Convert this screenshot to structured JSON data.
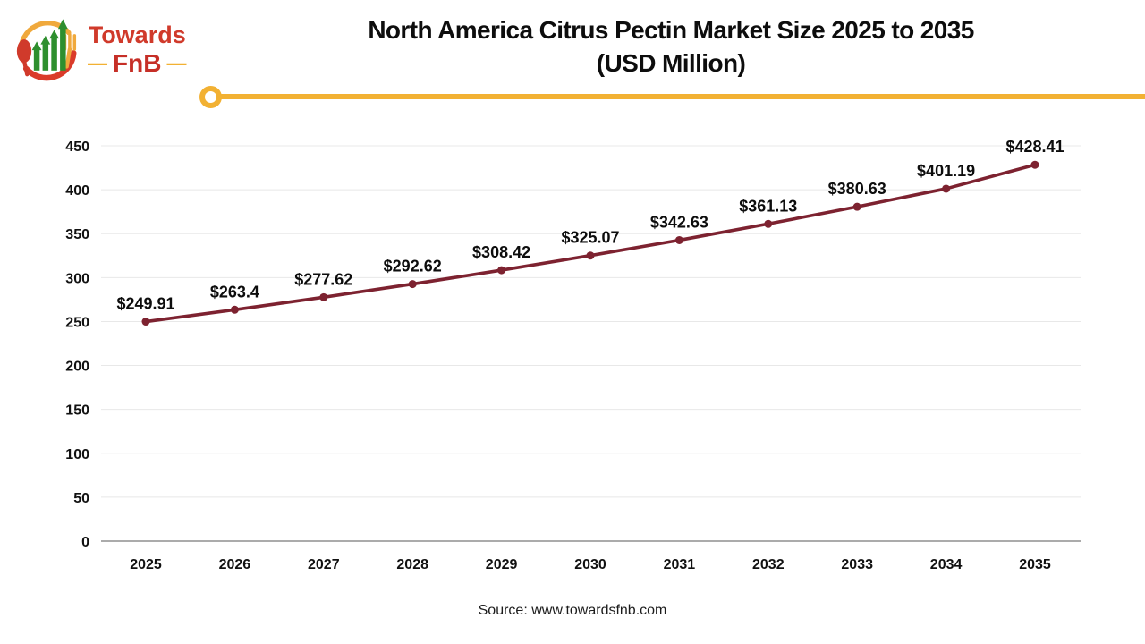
{
  "logo": {
    "brand_top": "Towards",
    "brand_bottom": "FnB",
    "dash": "—"
  },
  "header": {
    "title_line1": "North America Citrus Pectin Market Size 2025 to 2035",
    "title_line2": "(USD Million)"
  },
  "footer": {
    "source": "Source: www.towardsfnb.com"
  },
  "colors": {
    "series_line": "#7d2230",
    "marker": "#7d2230",
    "accent_gold": "#f2b133",
    "gridline": "#e8e8e8",
    "axis_line": "#ababab",
    "tick_text": "#111111",
    "data_label_text": "#0d0d0d"
  },
  "chart_data": {
    "type": "line",
    "title": "North America Citrus Pectin Market Size 2025 to 2035 (USD Million)",
    "categories": [
      "2025",
      "2026",
      "2027",
      "2028",
      "2029",
      "2030",
      "2031",
      "2032",
      "2033",
      "2034",
      "2035"
    ],
    "series": [
      {
        "name": "North America Citrus Pectin Market Size (USD Million)",
        "values": [
          249.91,
          263.4,
          277.62,
          292.62,
          308.42,
          325.07,
          342.63,
          361.13,
          380.63,
          401.19,
          428.41
        ]
      }
    ],
    "data_labels": [
      "$249.91",
      "$263.4",
      "$277.62",
      "$292.62",
      "$308.42",
      "$325.07",
      "$342.63",
      "$361.13",
      "$380.63",
      "$401.19",
      "$428.41"
    ],
    "xlabel": "",
    "ylabel": "",
    "ylim": [
      0,
      450
    ],
    "yticks": [
      0,
      50,
      100,
      150,
      200,
      250,
      300,
      350,
      400,
      450
    ],
    "grid": true,
    "legend": false
  }
}
